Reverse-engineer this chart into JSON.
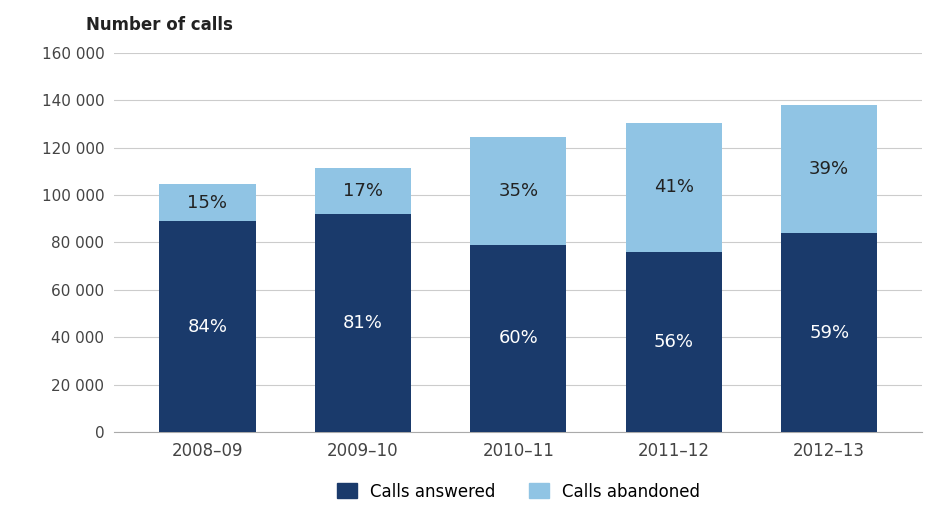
{
  "categories": [
    "2008–09",
    "2009–10",
    "2010–11",
    "2011–12",
    "2012–13"
  ],
  "calls_answered": [
    89000,
    92000,
    79000,
    76000,
    84000
  ],
  "calls_abandoned": [
    15600,
    19200,
    45500,
    54500,
    54000
  ],
  "pct_answered": [
    "84%",
    "81%",
    "60%",
    "56%",
    "59%"
  ],
  "pct_abandoned": [
    "15%",
    "17%",
    "35%",
    "41%",
    "39%"
  ],
  "color_answered": "#1a3a6b",
  "color_abandoned": "#90c4e4",
  "ylabel": "Number of calls",
  "ylim": [
    0,
    160000
  ],
  "yticks": [
    0,
    20000,
    40000,
    60000,
    80000,
    100000,
    120000,
    140000,
    160000
  ],
  "legend_answered": "Calls answered",
  "legend_abandoned": "Calls abandoned",
  "background_color": "#ffffff",
  "grid_color": "#cccccc"
}
